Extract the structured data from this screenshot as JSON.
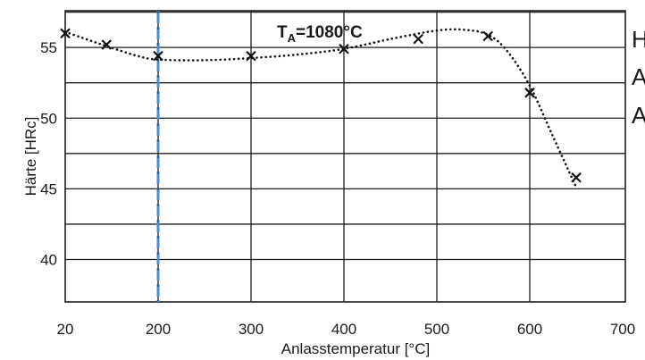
{
  "chart_data": {
    "type": "line",
    "ylabel": "Härte [HRc]",
    "xlabel": "Anlasstemperatur [°C]",
    "annotation": {
      "main": "T",
      "sub": "A",
      "rest": "=1080°C"
    },
    "x_tick_labels": [
      "20",
      "200",
      "300",
      "400",
      "500",
      "600",
      "700"
    ],
    "y_tick_labels": [
      "55",
      "50",
      "45",
      "40"
    ],
    "y_ticks": [
      55,
      50,
      45,
      40
    ],
    "ylim": [
      37,
      57.6
    ],
    "reference_line": {
      "x": 200,
      "color": "#4a8fd6",
      "style": "dashed"
    },
    "grid": true,
    "series": [
      {
        "marker": "x",
        "line_style": "dotted",
        "points": [
          {
            "x": 20,
            "y": 56.0
          },
          {
            "x": 100,
            "y": 55.2
          },
          {
            "x": 200,
            "y": 54.4
          },
          {
            "x": 300,
            "y": 54.4
          },
          {
            "x": 400,
            "y": 54.9
          },
          {
            "x": 480,
            "y": 55.6
          },
          {
            "x": 555,
            "y": 55.8
          },
          {
            "x": 600,
            "y": 51.8
          },
          {
            "x": 650,
            "y": 45.8
          }
        ]
      }
    ],
    "curve": [
      {
        "x": 20,
        "y": 56.1
      },
      {
        "x": 100,
        "y": 55.1
      },
      {
        "x": 160,
        "y": 54.4
      },
      {
        "x": 200,
        "y": 54.15
      },
      {
        "x": 250,
        "y": 54.1
      },
      {
        "x": 300,
        "y": 54.25
      },
      {
        "x": 350,
        "y": 54.5
      },
      {
        "x": 400,
        "y": 54.9
      },
      {
        "x": 450,
        "y": 55.6
      },
      {
        "x": 500,
        "y": 56.2
      },
      {
        "x": 530,
        "y": 56.25
      },
      {
        "x": 555,
        "y": 55.9
      },
      {
        "x": 575,
        "y": 54.8
      },
      {
        "x": 600,
        "y": 52.3
      },
      {
        "x": 625,
        "y": 48.7
      },
      {
        "x": 650,
        "y": 45.1
      }
    ]
  },
  "clipped_text": [
    "H",
    "A",
    "A"
  ],
  "colors": {
    "grid": "#1e1e1e",
    "series": "#111111",
    "reference": "#4a8fd6",
    "text": "#1a1a1a"
  }
}
